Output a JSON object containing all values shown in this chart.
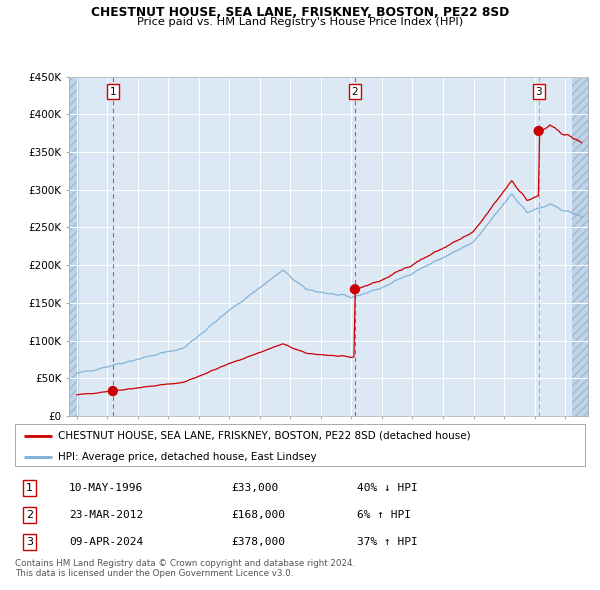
{
  "title": "CHESTNUT HOUSE, SEA LANE, FRISKNEY, BOSTON, PE22 8SD",
  "subtitle": "Price paid vs. HM Land Registry's House Price Index (HPI)",
  "red_line_label": "CHESTNUT HOUSE, SEA LANE, FRISKNEY, BOSTON, PE22 8SD (detached house)",
  "blue_line_label": "HPI: Average price, detached house, East Lindsey",
  "sale1_date": "10-MAY-1996",
  "sale1_price": 33000,
  "sale1_hpi": "40% ↓ HPI",
  "sale2_date": "23-MAR-2012",
  "sale2_price": 168000,
  "sale2_hpi": "6% ↑ HPI",
  "sale3_date": "09-APR-2024",
  "sale3_price": 378000,
  "sale3_hpi": "37% ↑ HPI",
  "footer1": "Contains HM Land Registry data © Crown copyright and database right 2024.",
  "footer2": "This data is licensed under the Open Government Licence v3.0.",
  "ylim": [
    0,
    450000
  ],
  "sale1_year": 1996.37,
  "sale2_year": 2012.23,
  "sale3_year": 2024.27,
  "background_color": "#dce9f5",
  "plot_bg": "#ffffff",
  "hatch_color": "#c8d8e8",
  "red_color": "#cc0000",
  "blue_color": "#7aadd4"
}
